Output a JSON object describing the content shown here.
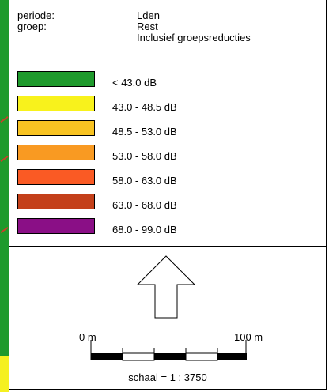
{
  "legend": {
    "periode_label": "periode:",
    "periode_value": "Lden",
    "groep_label": "groep:",
    "groep_value": "Rest",
    "groep_note": "Inclusief groepsreducties",
    "classes": [
      {
        "label": "< 43.0 dB",
        "color": "#1e9a2c"
      },
      {
        "label": "43.0 - 48.5 dB",
        "color": "#f8f21c"
      },
      {
        "label": "48.5 - 53.0 dB",
        "color": "#f8c322"
      },
      {
        "label": "53.0 - 58.0 dB",
        "color": "#f99a22"
      },
      {
        "label": "58.0 - 63.0 dB",
        "color": "#fa5a24"
      },
      {
        "label": "63.0 - 68.0 dB",
        "color": "#c4401a"
      },
      {
        "label": "68.0 - 99.0 dB",
        "color": "#8a0f86"
      }
    ]
  },
  "scale": {
    "start_label": "0 m",
    "end_label": "100 m",
    "ratio_text": "schaal = 1 : 3750"
  }
}
